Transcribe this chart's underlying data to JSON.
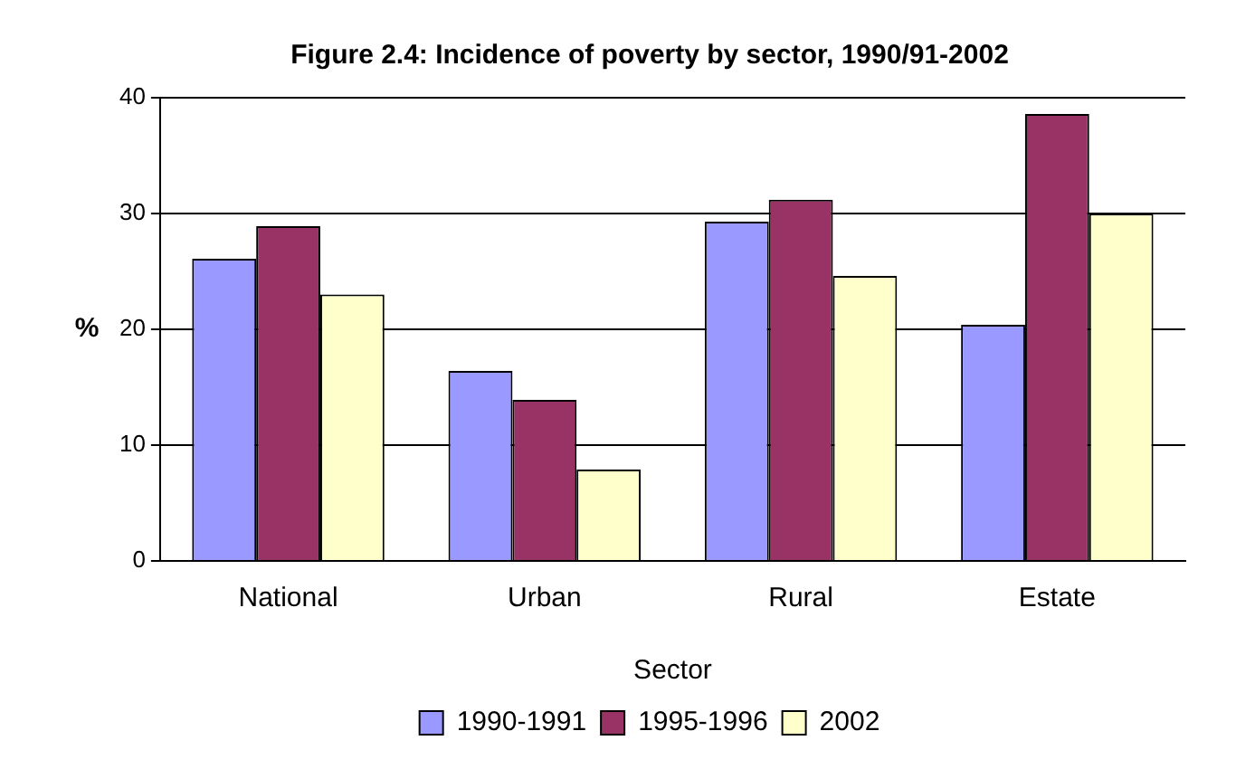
{
  "chart_data": {
    "type": "bar",
    "title": "Figure 2.4: Incidence of poverty by sector, 1990/91-2002",
    "xlabel": "Sector",
    "ylabel": "%",
    "categories": [
      "National",
      "Urban",
      "Rural",
      "Estate"
    ],
    "series": [
      {
        "name": "1990-1991",
        "color": "#9999ff",
        "values": [
          26.1,
          16.4,
          29.3,
          20.4
        ]
      },
      {
        "name": "1995-1996",
        "color": "#993366",
        "values": [
          28.9,
          13.9,
          31.2,
          38.6
        ]
      },
      {
        "name": "2002",
        "color": "#ffffcc",
        "values": [
          23.0,
          7.9,
          24.6,
          30.0
        ]
      }
    ],
    "ylim": [
      0,
      40
    ],
    "yticks": [
      0,
      10,
      20,
      30,
      40
    ],
    "grid": "y",
    "legend": "bottom"
  }
}
